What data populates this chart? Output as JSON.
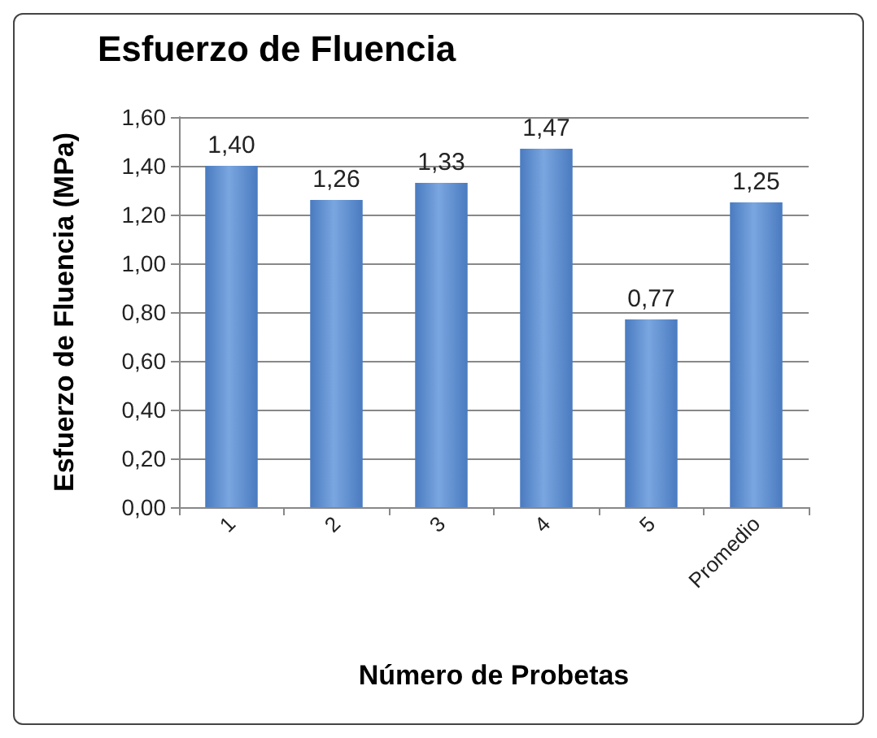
{
  "chart_data": {
    "type": "bar",
    "title": "Esfuerzo de Fluencia",
    "xlabel": "Número de Probetas",
    "ylabel": "Esfuerzo de Fluencia (MPa)",
    "categories": [
      "1",
      "2",
      "3",
      "4",
      "5",
      "Promedio"
    ],
    "values": [
      1.4,
      1.26,
      1.33,
      1.47,
      0.77,
      1.25
    ],
    "value_labels": [
      "1,40",
      "1,26",
      "1,33",
      "1,47",
      "0,77",
      "1,25"
    ],
    "color": "#4a7bc0",
    "ylim": [
      0,
      1.6
    ],
    "yticks": [
      {
        "value": 0,
        "label": "0,00"
      },
      {
        "value": 0.2,
        "label": "0,20"
      },
      {
        "value": 0.4,
        "label": "0,40"
      },
      {
        "value": 0.6,
        "label": "0,60"
      },
      {
        "value": 0.8,
        "label": "0,80"
      },
      {
        "value": 1.0,
        "label": "1,00"
      },
      {
        "value": 1.2,
        "label": "1,20"
      },
      {
        "value": 1.4,
        "label": "1,40"
      },
      {
        "value": 1.6,
        "label": "1,60"
      }
    ],
    "grid": "y"
  }
}
